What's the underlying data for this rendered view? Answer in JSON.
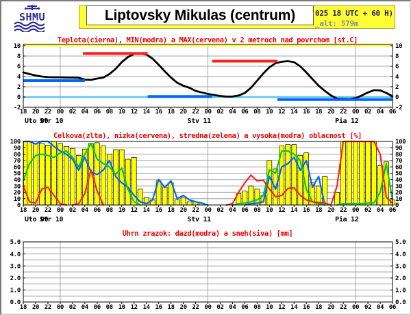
{
  "header": {
    "logo_text": "SHMU",
    "title": "Liptovsky Mikulas (centrum)",
    "banner_line1_fragment": "025 18 UTC + 60 H)",
    "banner_line2_fragment": "_alt: 579m"
  },
  "colors": {
    "grid": "#a0a0a0",
    "title": "#ee0000",
    "frame": "#000000",
    "banner_bg": "#ffff33",
    "logo_navy": "#2a2a96"
  },
  "time_axis": {
    "hour_labels": [
      "18",
      "20",
      "22",
      "00",
      "02",
      "04",
      "06",
      "08",
      "10",
      "12",
      "14",
      "16",
      "18",
      "20",
      "22",
      "00",
      "02",
      "04",
      "06",
      "08",
      "10",
      "12",
      "14",
      "16",
      "18",
      "20",
      "22",
      "00",
      "02",
      "04",
      "06"
    ],
    "day_gridlines_t": [
      6,
      30,
      54
    ],
    "day_labels": [
      {
        "label": "Uto 09",
        "t": 0
      },
      {
        "label": "Str 10",
        "t": 6
      },
      {
        "label": "Stv 11",
        "t": 30
      },
      {
        "label": "Pia 12",
        "t": 54
      }
    ]
  },
  "chart_data": [
    {
      "type": "line",
      "title": "Teplota(cierna), MIN(modra) a MAX(cervena) v 2 metroch nad povrchom [st.C]",
      "ylabel": "st.C",
      "ylim": [
        -2,
        10
      ],
      "yticks": [
        -2,
        0,
        2,
        4,
        6,
        8,
        10
      ],
      "ytick_labels": [
        "-2",
        "0",
        "2",
        "4",
        "6",
        "8",
        "10"
      ],
      "grid_y": [
        2,
        4,
        6,
        8
      ],
      "top_line": {
        "value": 10,
        "color": "#ffff22"
      },
      "zero_line": {
        "value": 0,
        "color": "#55c8f0"
      },
      "series": [
        {
          "name": "temperature-2m",
          "color": "#000000",
          "width": 2.8,
          "clip_zero": false,
          "values": [
            4.8,
            4.5,
            4.2,
            4.0,
            3.9,
            3.85,
            3.85,
            3.8,
            3.8,
            3.75,
            3.4,
            3.35,
            3.6,
            3.8,
            4.5,
            5.5,
            6.8,
            7.8,
            8.4,
            8.5,
            8.3,
            7.5,
            6.3,
            5.0,
            3.8,
            2.8,
            2.2,
            1.8,
            1.2,
            0.9,
            0.6,
            0.4,
            0.2,
            0.1,
            0.1,
            0.3,
            0.8,
            1.8,
            3.2,
            4.6,
            5.8,
            6.6,
            6.9,
            7.0,
            6.8,
            6.0,
            4.8,
            3.5,
            2.2,
            1.2,
            0.3,
            -0.3,
            -0.35,
            -0.4,
            -0.2,
            0.3,
            0.9,
            1.35,
            1.3,
            0.8,
            0.15
          ]
        }
      ],
      "segments": [
        {
          "name": "min",
          "color": "#0066ff",
          "width": 4,
          "y": 3.2,
          "t0": 0,
          "t1": 10
        },
        {
          "name": "max",
          "color": "#ff2020",
          "width": 4,
          "y": 8.5,
          "t0": 9.7,
          "t1": 20.2
        },
        {
          "name": "min",
          "color": "#0066ff",
          "width": 4,
          "y": 0.1,
          "t0": 20.2,
          "t1": 30.7
        },
        {
          "name": "max",
          "color": "#ff2020",
          "width": 4,
          "y": 7.0,
          "t0": 30.7,
          "t1": 41.3
        },
        {
          "name": "min",
          "color": "#0066ff",
          "width": 4,
          "y": -0.5,
          "t0": 41.3,
          "t1": 60
        }
      ]
    },
    {
      "type": "bar+line",
      "title": "Celkova(zlta), nizka(cervena), stredna(zelena) a vysoka(modra) oblacnost [%]",
      "ylabel": "%",
      "ylim": [
        0,
        100
      ],
      "yticks": [
        0,
        10,
        20,
        30,
        40,
        50,
        60,
        70,
        80,
        90,
        100
      ],
      "ytick_labels": [
        "0",
        "10",
        "20",
        "30",
        "40",
        "50",
        "60",
        "70",
        "80",
        "90",
        "100"
      ],
      "grid_y": [
        10,
        20,
        30,
        40,
        50,
        60,
        70,
        80,
        90
      ],
      "bars": {
        "name": "total-cloudiness",
        "color": "#ffff00",
        "values": [
          100,
          100,
          97,
          97,
          94,
          100,
          97,
          92,
          89,
          78,
          88,
          97,
          98,
          93,
          80,
          87,
          87,
          72,
          75,
          25,
          12,
          8,
          38,
          28,
          35,
          8,
          12,
          5,
          5,
          3,
          0,
          0,
          0,
          0,
          0,
          18,
          22,
          30,
          25,
          15,
          70,
          57,
          93,
          95,
          95,
          78,
          82,
          35,
          30,
          45,
          0,
          20,
          100,
          100,
          100,
          100,
          100,
          100,
          62,
          68,
          8
        ]
      },
      "series": [
        {
          "name": "low-cloudiness",
          "color": "#ff2020",
          "width": 2.2,
          "clip_zero": true,
          "values": [
            30,
            5,
            3,
            25,
            28,
            15,
            2,
            0,
            0,
            2,
            18,
            55,
            22,
            0,
            0,
            0,
            0,
            0,
            0,
            0,
            0,
            0,
            0,
            0,
            0,
            0,
            0,
            0,
            0,
            0,
            0,
            0,
            0,
            0,
            2,
            20,
            35,
            47,
            38,
            39,
            25,
            13,
            15,
            26,
            27,
            15,
            8,
            5,
            4,
            3,
            0,
            30,
            100,
            100,
            100,
            100,
            100,
            100,
            80,
            12,
            3
          ]
        },
        {
          "name": "medium-cloudiness",
          "color": "#00cc22",
          "width": 2.2,
          "clip_zero": true,
          "values": [
            38,
            65,
            78,
            80,
            78,
            75,
            82,
            85,
            75,
            60,
            80,
            97,
            72,
            65,
            60,
            48,
            58,
            25,
            5,
            0,
            0,
            0,
            0,
            0,
            0,
            0,
            0,
            0,
            0,
            0,
            0,
            0,
            0,
            0,
            0,
            2,
            3,
            5,
            8,
            15,
            55,
            50,
            85,
            85,
            80,
            70,
            25,
            5,
            2,
            0,
            0,
            0,
            2,
            2,
            2,
            2,
            3,
            3,
            20,
            65,
            8
          ]
        },
        {
          "name": "high-cloudiness",
          "color": "#0066ff",
          "width": 2.2,
          "clip_zero": true,
          "values": [
            100,
            100,
            96,
            100,
            100,
            92,
            85,
            80,
            72,
            55,
            75,
            52,
            48,
            55,
            70,
            45,
            35,
            28,
            15,
            5,
            2,
            8,
            40,
            28,
            38,
            10,
            15,
            8,
            5,
            3,
            0,
            0,
            0,
            0,
            0,
            0,
            0,
            2,
            3,
            5,
            45,
            25,
            60,
            65,
            75,
            55,
            70,
            28,
            45,
            0,
            0,
            0,
            0,
            0,
            0,
            0,
            0,
            0,
            0,
            0,
            0
          ]
        }
      ]
    },
    {
      "type": "bar",
      "title": "Uhrn zrazok: dazd(modra) a sneh(siva) [mm]",
      "ylabel": "mm",
      "ylim": [
        0,
        5
      ],
      "yticks": [
        0,
        1,
        2,
        3,
        4,
        5
      ],
      "ytick_labels": [
        "0.0",
        "1.0",
        "2.0",
        "3.0",
        "4.0",
        "5.0"
      ],
      "grid_y": [
        0.5,
        1,
        1.5,
        2,
        2.5,
        3,
        3.5,
        4,
        4.5
      ],
      "bars": {
        "name": "rain",
        "color": "#0066ff",
        "values": []
      },
      "series": []
    }
  ]
}
